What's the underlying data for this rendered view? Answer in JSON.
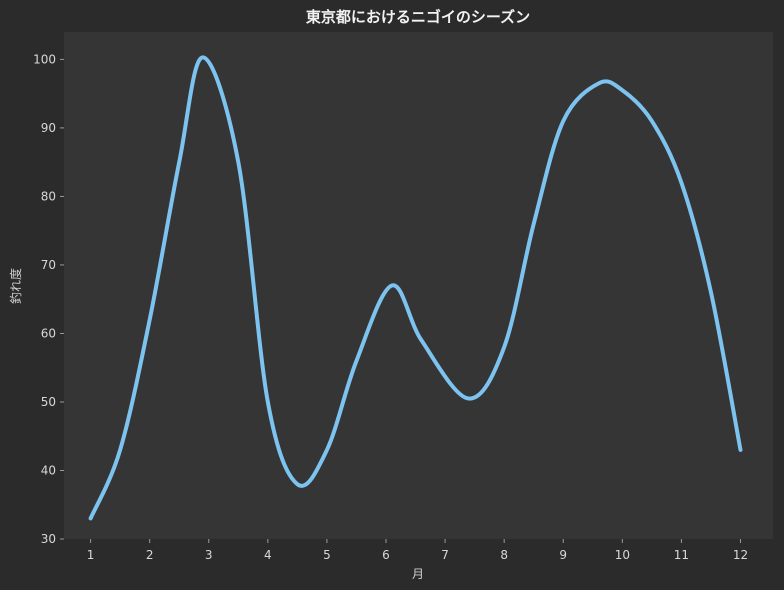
{
  "chart_data": {
    "type": "line",
    "title": "東京都におけるニゴイのシーズン",
    "xlabel": "月",
    "ylabel": "釣れ度",
    "x": [
      1,
      1.5,
      2,
      2.5,
      2.9,
      3.5,
      4,
      4.5,
      5,
      5.5,
      6.1,
      6.6,
      7.4,
      8,
      8.5,
      9,
      9.6,
      10,
      10.5,
      11,
      11.5,
      12
    ],
    "series": [
      {
        "values": [
          33,
          43,
          62,
          85,
          100.3,
          85,
          50,
          38,
          43,
          56,
          67,
          59,
          50.5,
          58,
          76,
          91,
          96.5,
          95.5,
          91,
          82,
          66,
          43
        ],
        "color": "#7dc3f0"
      }
    ],
    "xticks": [
      "1",
      "2",
      "3",
      "4",
      "5",
      "6",
      "7",
      "8",
      "9",
      "10",
      "11",
      "12"
    ],
    "yticks": [
      "30",
      "40",
      "50",
      "60",
      "70",
      "80",
      "90",
      "100"
    ],
    "xlim": [
      0.55,
      12.55
    ],
    "ylim": [
      30,
      104
    ],
    "grid": false,
    "colors": {
      "figure_bg": "#2b2b2b",
      "plot_bg": "#353535",
      "line": "#7dc3f0"
    }
  }
}
